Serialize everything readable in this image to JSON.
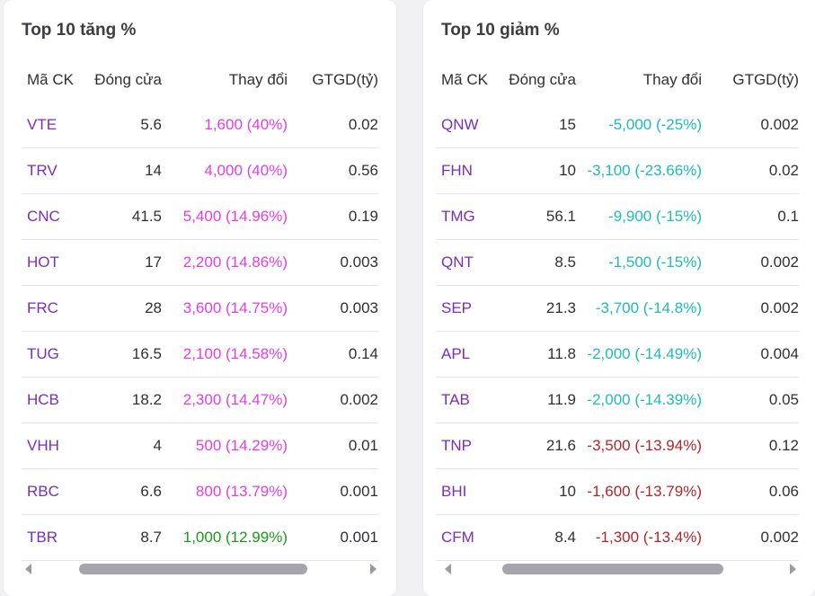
{
  "colors": {
    "up": "#e33ee6",
    "up_alt": "#1a9a1a",
    "down_teal": "#1cbcb8",
    "down_red": "#b3262b",
    "symbol": "#7b2dbb"
  },
  "gainers": {
    "title": "Top 10 tăng %",
    "headers": [
      "Mã CK",
      "Đóng cửa",
      "Thay đổi",
      "GTGD(tỷ)"
    ],
    "rows": [
      {
        "symbol": "VTE",
        "close": "5.6",
        "change": "1,600 (40%)",
        "value": "0.02",
        "color": "#e33ee6"
      },
      {
        "symbol": "TRV",
        "close": "14",
        "change": "4,000 (40%)",
        "value": "0.56",
        "color": "#e33ee6"
      },
      {
        "symbol": "CNC",
        "close": "41.5",
        "change": "5,400 (14.96%)",
        "value": "0.19",
        "color": "#e33ee6"
      },
      {
        "symbol": "HOT",
        "close": "17",
        "change": "2,200 (14.86%)",
        "value": "0.003",
        "color": "#e33ee6"
      },
      {
        "symbol": "FRC",
        "close": "28",
        "change": "3,600 (14.75%)",
        "value": "0.003",
        "color": "#e33ee6"
      },
      {
        "symbol": "TUG",
        "close": "16.5",
        "change": "2,100 (14.58%)",
        "value": "0.14",
        "color": "#e33ee6"
      },
      {
        "symbol": "HCB",
        "close": "18.2",
        "change": "2,300 (14.47%)",
        "value": "0.002",
        "color": "#e33ee6"
      },
      {
        "symbol": "VHH",
        "close": "4",
        "change": "500 (14.29%)",
        "value": "0.01",
        "color": "#e33ee6"
      },
      {
        "symbol": "RBC",
        "close": "6.6",
        "change": "800 (13.79%)",
        "value": "0.001",
        "color": "#e33ee6"
      },
      {
        "symbol": "TBR",
        "close": "8.7",
        "change": "1,000 (12.99%)",
        "value": "0.001",
        "color": "#1a9a1a"
      }
    ]
  },
  "losers": {
    "title": "Top 10 giảm %",
    "headers": [
      "Mã CK",
      "Đóng cửa",
      "Thay đổi",
      "GTGD(tỷ)"
    ],
    "rows": [
      {
        "symbol": "QNW",
        "close": "15",
        "change": "-5,000 (-25%)",
        "value": "0.002",
        "color": "#1cbcb8"
      },
      {
        "symbol": "FHN",
        "close": "10",
        "change": "-3,100 (-23.66%)",
        "value": "0.02",
        "color": "#1cbcb8"
      },
      {
        "symbol": "TMG",
        "close": "56.1",
        "change": "-9,900 (-15%)",
        "value": "0.1",
        "color": "#1cbcb8"
      },
      {
        "symbol": "QNT",
        "close": "8.5",
        "change": "-1,500 (-15%)",
        "value": "0.002",
        "color": "#1cbcb8"
      },
      {
        "symbol": "SEP",
        "close": "21.3",
        "change": "-3,700 (-14.8%)",
        "value": "0.002",
        "color": "#1cbcb8"
      },
      {
        "symbol": "APL",
        "close": "11.8",
        "change": "-2,000 (-14.49%)",
        "value": "0.004",
        "color": "#1cbcb8"
      },
      {
        "symbol": "TAB",
        "close": "11.9",
        "change": "-2,000 (-14.39%)",
        "value": "0.05",
        "color": "#1cbcb8"
      },
      {
        "symbol": "TNP",
        "close": "21.6",
        "change": "-3,500 (-13.94%)",
        "value": "0.12",
        "color": "#b3262b"
      },
      {
        "symbol": "BHI",
        "close": "10",
        "change": "-1,600 (-13.79%)",
        "value": "0.06",
        "color": "#b3262b"
      },
      {
        "symbol": "CFM",
        "close": "8.4",
        "change": "-1,300 (-13.4%)",
        "value": "0.002",
        "color": "#b3262b"
      }
    ]
  }
}
